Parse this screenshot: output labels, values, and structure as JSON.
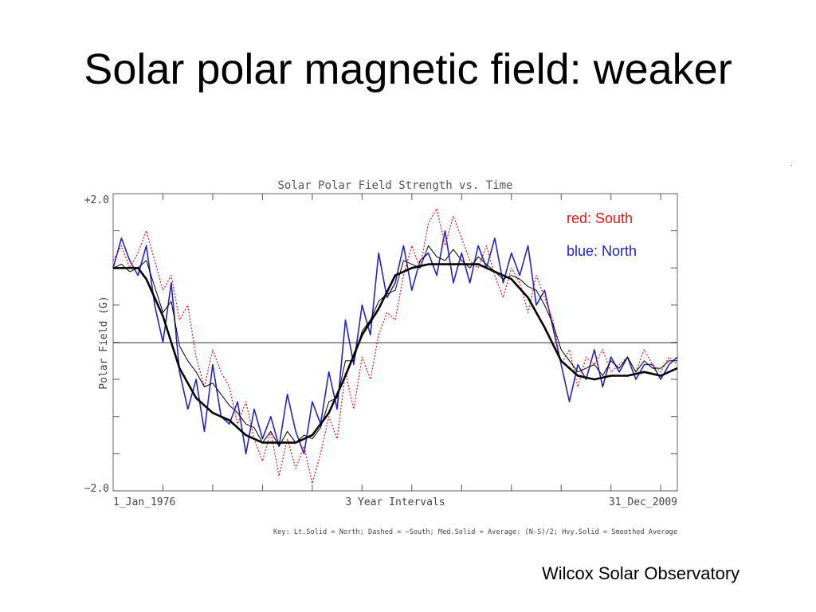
{
  "slide": {
    "title": "Solar polar magnetic field: weaker",
    "credit": "Wilcox Solar Observatory"
  },
  "legend": {
    "south": "red: South",
    "north": "blue: North"
  },
  "colors": {
    "south": "#ee1111",
    "north": "#2222cc",
    "average": "#000000",
    "axis": "#555555"
  },
  "chart_data": {
    "type": "line",
    "title": "Solar Polar Field Strength vs. Time",
    "ylabel": "Polar Field (G)",
    "xlabel": "3 Year Intervals",
    "x_start_label": "1_Jan_1976",
    "x_end_label": "31_Dec_2009",
    "y_max_label": "+2.0",
    "y_min_label": "−2.0",
    "ylim": [
      -2.0,
      2.0
    ],
    "xlim": [
      1976.0,
      2010.0
    ],
    "key": "Key: Lt.Solid = North; Dashed = −South; Med.Solid = Average: (N-S)/2; Hvy.Solid = Smoothed Average",
    "grid": false,
    "series": [
      {
        "name": "North",
        "style": "solid-thin",
        "x": [
          1976.0,
          1976.5,
          1977.0,
          1977.5,
          1978.0,
          1978.5,
          1979.0,
          1979.5,
          1980.0,
          1980.5,
          1981.0,
          1981.5,
          1982.0,
          1982.5,
          1983.0,
          1983.5,
          1984.0,
          1984.5,
          1985.0,
          1985.5,
          1986.0,
          1986.5,
          1987.0,
          1987.5,
          1988.0,
          1988.5,
          1989.0,
          1989.5,
          1990.0,
          1990.5,
          1991.0,
          1991.5,
          1992.0,
          1992.5,
          1993.0,
          1993.5,
          1994.0,
          1994.5,
          1995.0,
          1995.5,
          1996.0,
          1996.5,
          1997.0,
          1997.5,
          1998.0,
          1998.5,
          1999.0,
          1999.5,
          2000.0,
          2000.5,
          2001.0,
          2001.5,
          2002.0,
          2002.5,
          2003.0,
          2003.5,
          2004.0,
          2004.5,
          2005.0,
          2005.5,
          2006.0,
          2006.5,
          2007.0,
          2007.5,
          2008.0,
          2008.5,
          2009.0,
          2009.5,
          2010.0
        ],
        "y": [
          1.0,
          1.4,
          1.1,
          0.9,
          1.3,
          0.5,
          0.0,
          0.8,
          -0.4,
          -0.9,
          -0.5,
          -1.2,
          -0.3,
          -1.0,
          -1.1,
          -0.8,
          -1.5,
          -0.9,
          -1.3,
          -1.0,
          -1.4,
          -0.7,
          -1.2,
          -1.5,
          -0.8,
          -1.1,
          -0.4,
          -0.9,
          0.3,
          -0.3,
          0.5,
          0.1,
          1.2,
          0.6,
          0.8,
          1.3,
          0.7,
          1.1,
          1.2,
          0.9,
          1.5,
          0.8,
          1.2,
          0.8,
          1.3,
          1.0,
          1.4,
          0.8,
          1.2,
          0.9,
          1.3,
          0.5,
          0.7,
          0.2,
          -0.3,
          -0.8,
          -0.3,
          -0.5,
          -0.1,
          -0.6,
          -0.2,
          -0.4,
          -0.2,
          -0.5,
          -0.3,
          -0.3,
          -0.5,
          -0.3,
          -0.2
        ]
      },
      {
        "name": "−South",
        "style": "dashed",
        "x": [
          1976.0,
          1976.5,
          1977.0,
          1977.5,
          1978.0,
          1978.5,
          1979.0,
          1979.5,
          1980.0,
          1980.5,
          1981.0,
          1981.5,
          1982.0,
          1982.5,
          1983.0,
          1983.5,
          1984.0,
          1984.5,
          1985.0,
          1985.5,
          1986.0,
          1986.5,
          1987.0,
          1987.5,
          1988.0,
          1988.5,
          1989.0,
          1989.5,
          1990.0,
          1990.5,
          1991.0,
          1991.5,
          1992.0,
          1992.5,
          1993.0,
          1993.5,
          1994.0,
          1994.5,
          1995.0,
          1995.5,
          1996.0,
          1996.5,
          1997.0,
          1997.5,
          1998.0,
          1998.5,
          1999.0,
          1999.5,
          2000.0,
          2000.5,
          2001.0,
          2001.5,
          2002.0,
          2002.5,
          2003.0,
          2003.5,
          2004.0,
          2004.5,
          2005.0,
          2005.5,
          2006.0,
          2006.5,
          2007.0,
          2007.5,
          2008.0,
          2008.5,
          2009.0,
          2009.5,
          2010.0
        ],
        "y": [
          1.1,
          1.3,
          1.0,
          1.2,
          1.5,
          1.1,
          0.7,
          0.9,
          0.3,
          0.5,
          -0.2,
          -0.6,
          -0.1,
          -0.4,
          -0.6,
          -1.1,
          -0.8,
          -1.3,
          -1.6,
          -1.2,
          -1.8,
          -1.3,
          -1.7,
          -1.4,
          -1.9,
          -1.5,
          -1.0,
          -1.3,
          -0.4,
          -0.9,
          -0.2,
          -0.5,
          0.1,
          0.4,
          0.3,
          0.9,
          1.3,
          1.0,
          1.6,
          1.8,
          1.3,
          1.7,
          1.4,
          1.1,
          1.0,
          1.3,
          0.9,
          0.6,
          1.0,
          0.8,
          0.4,
          0.9,
          0.6,
          0.3,
          -0.3,
          -0.1,
          -0.6,
          -0.2,
          -0.3,
          -0.1,
          -0.4,
          -0.3,
          -0.2,
          -0.4,
          -0.1,
          -0.3,
          -0.4,
          -0.2,
          -0.3
        ]
      },
      {
        "name": "Average",
        "style": "solid-medium",
        "x": [
          1976.0,
          1976.5,
          1977.0,
          1977.5,
          1978.0,
          1978.5,
          1979.0,
          1979.5,
          1980.0,
          1980.5,
          1981.0,
          1981.5,
          1982.0,
          1982.5,
          1983.0,
          1983.5,
          1984.0,
          1984.5,
          1985.0,
          1985.5,
          1986.0,
          1986.5,
          1987.0,
          1987.5,
          1988.0,
          1988.5,
          1989.0,
          1989.5,
          1990.0,
          1990.5,
          1991.0,
          1991.5,
          1992.0,
          1992.5,
          1993.0,
          1993.5,
          1994.0,
          1994.5,
          1995.0,
          1995.5,
          1996.0,
          1996.5,
          1997.0,
          1997.5,
          1998.0,
          1998.5,
          1999.0,
          1999.5,
          2000.0,
          2000.5,
          2001.0,
          2001.5,
          2002.0,
          2002.5,
          2003.0,
          2003.5,
          2004.0,
          2004.5,
          2005.0,
          2005.5,
          2006.0,
          2006.5,
          2007.0,
          2007.5,
          2008.0,
          2008.5,
          2009.0,
          2009.5,
          2010.0
        ],
        "y": [
          1.0,
          1.05,
          0.95,
          1.0,
          1.1,
          0.75,
          0.4,
          0.55,
          -0.05,
          -0.25,
          -0.4,
          -0.6,
          -0.55,
          -0.7,
          -0.85,
          -0.95,
          -1.1,
          -1.15,
          -1.35,
          -1.2,
          -1.4,
          -1.2,
          -1.35,
          -1.25,
          -1.3,
          -1.15,
          -0.8,
          -0.75,
          -0.25,
          -0.25,
          0.15,
          0.3,
          0.55,
          0.65,
          0.7,
          1.1,
          1.05,
          1.0,
          1.3,
          1.15,
          1.1,
          1.25,
          1.1,
          1.0,
          1.15,
          1.05,
          0.95,
          0.85,
          0.9,
          0.85,
          0.75,
          0.7,
          0.5,
          0.25,
          -0.1,
          -0.25,
          -0.4,
          -0.35,
          -0.3,
          -0.45,
          -0.25,
          -0.35,
          -0.2,
          -0.4,
          -0.25,
          -0.35,
          -0.35,
          -0.25,
          -0.25
        ]
      },
      {
        "name": "Smoothed Average",
        "style": "solid-heavy",
        "x": [
          1976.0,
          1977.0,
          1977.5,
          1978.0,
          1979.0,
          1980.0,
          1981.0,
          1982.0,
          1983.0,
          1984.0,
          1985.0,
          1986.0,
          1987.0,
          1988.0,
          1989.0,
          1990.0,
          1991.0,
          1992.0,
          1993.0,
          1994.0,
          1995.0,
          1996.0,
          1997.0,
          1998.0,
          1999.0,
          2000.0,
          2001.0,
          2002.0,
          2003.0,
          2004.0,
          2005.0,
          2006.0,
          2007.0,
          2008.0,
          2009.0,
          2010.0
        ],
        "y": [
          1.0,
          1.0,
          1.0,
          0.85,
          0.35,
          -0.35,
          -0.75,
          -0.95,
          -1.05,
          -1.25,
          -1.35,
          -1.35,
          -1.35,
          -1.25,
          -0.95,
          -0.45,
          0.1,
          0.45,
          0.9,
          1.0,
          1.05,
          1.05,
          1.05,
          1.05,
          0.95,
          0.85,
          0.6,
          0.2,
          -0.25,
          -0.45,
          -0.5,
          -0.45,
          -0.45,
          -0.4,
          -0.45,
          -0.35
        ]
      }
    ]
  }
}
